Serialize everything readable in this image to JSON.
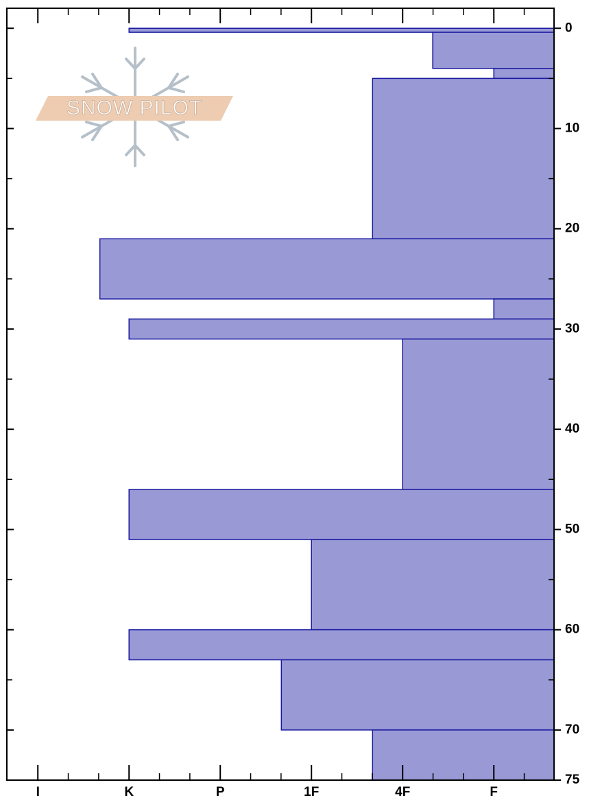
{
  "chart_data": {
    "type": "bar",
    "orientation": "horizontal",
    "watermark": "SNOW PILOT",
    "color": "#9999d6",
    "edge_color": "#1a1aa0",
    "xlim": [
      6.34,
      0.34
    ],
    "xticks": [
      {
        "value": 6,
        "label": "I"
      },
      {
        "value": 5,
        "label": "K"
      },
      {
        "value": 4,
        "label": "P"
      },
      {
        "value": 3,
        "label": "1F"
      },
      {
        "value": 2,
        "label": "4F"
      },
      {
        "value": 1,
        "label": "F"
      }
    ],
    "ylim": [
      -2,
      75
    ],
    "yticks": [
      0,
      10,
      20,
      30,
      40,
      50,
      60,
      70,
      75
    ],
    "layers": [
      {
        "top": 0,
        "bottom": 0.4,
        "hardness": 5
      },
      {
        "top": 0.4,
        "bottom": 4,
        "hardness": 1.67
      },
      {
        "top": 4,
        "bottom": 5,
        "hardness": 1
      },
      {
        "top": 5,
        "bottom": 21,
        "hardness": 2.33
      },
      {
        "top": 21,
        "bottom": 27,
        "hardness": 5.32
      },
      {
        "top": 27,
        "bottom": 29,
        "hardness": 1
      },
      {
        "top": 29,
        "bottom": 31,
        "hardness": 5
      },
      {
        "top": 31,
        "bottom": 46,
        "hardness": 2
      },
      {
        "top": 46,
        "bottom": 51,
        "hardness": 5
      },
      {
        "top": 51,
        "bottom": 60,
        "hardness": 3
      },
      {
        "top": 60,
        "bottom": 63,
        "hardness": 5
      },
      {
        "top": 63,
        "bottom": 70,
        "hardness": 3.33
      },
      {
        "top": 70,
        "bottom": 75,
        "hardness": 2.33
      }
    ]
  }
}
